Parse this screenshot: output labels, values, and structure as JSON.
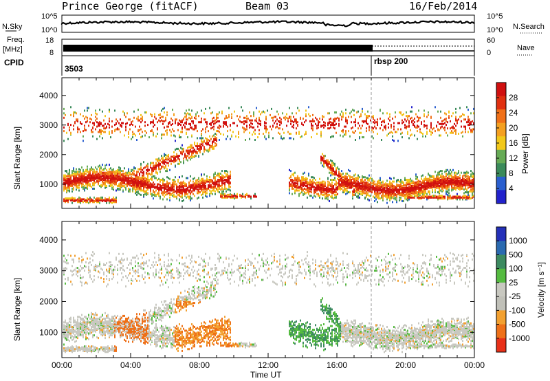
{
  "header": {
    "station": "Prince George (fitACF)",
    "beam": "Beam 03",
    "date": "16/Feb/2014"
  },
  "strips": {
    "nsky_label": "N.Sky",
    "nsky_top": "10^5",
    "nsky_bot": "10^0",
    "nsearch_label": "N.Search",
    "nsearch_top": "10^5",
    "nsearch_bot": "10^0",
    "freq_label": "Freq.",
    "freq_unit": "[MHz]",
    "freq_top": "18",
    "freq_bot": "8",
    "nave_label": "Nave",
    "nave_top": "60",
    "nave_bot": "0",
    "cpid_label": "CPID",
    "cpid_1": "3503",
    "cpid_2": "rbsp 200"
  },
  "chart_data": [
    {
      "type": "heatmap",
      "title": "",
      "ylabel": "Slant Range [km]",
      "xlabel": "Time UT",
      "ylim": [
        180,
        4600
      ],
      "yticks": [
        "1000",
        "2000",
        "3000",
        "4000"
      ],
      "colorbar": {
        "label": "Power [dB]",
        "ticks": [
          "4",
          "8",
          "12",
          "16",
          "20",
          "24",
          "28"
        ],
        "range": [
          0,
          30
        ]
      }
    },
    {
      "type": "heatmap",
      "title": "",
      "ylabel": "Slant Range [km]",
      "xlabel": "Time UT",
      "ylim": [
        180,
        4600
      ],
      "yticks": [
        "1000",
        "2000",
        "3000",
        "4000"
      ],
      "xticks": [
        "00:00",
        "04:00",
        "08:00",
        "12:00",
        "16:00",
        "20:00",
        "00:00"
      ],
      "colorbar": {
        "label": "Velocity [m s⁻¹]",
        "ticks": [
          "1000",
          "500",
          "100",
          "25",
          "-25",
          "-100",
          "-500",
          "-1000"
        ]
      }
    }
  ],
  "colors": {
    "power": [
      "#2222cc",
      "#2a5fcf",
      "#3a8a5a",
      "#66aa55",
      "#f2c81a",
      "#f4a020",
      "#f07018",
      "#e03010",
      "#d01010"
    ],
    "velocity": [
      "#2430b8",
      "#2a6ab0",
      "#3c8a60",
      "#55bb40",
      "#c8c8c0",
      "#c0c0b8",
      "#f2a030",
      "#ee7018",
      "#e83018"
    ]
  }
}
